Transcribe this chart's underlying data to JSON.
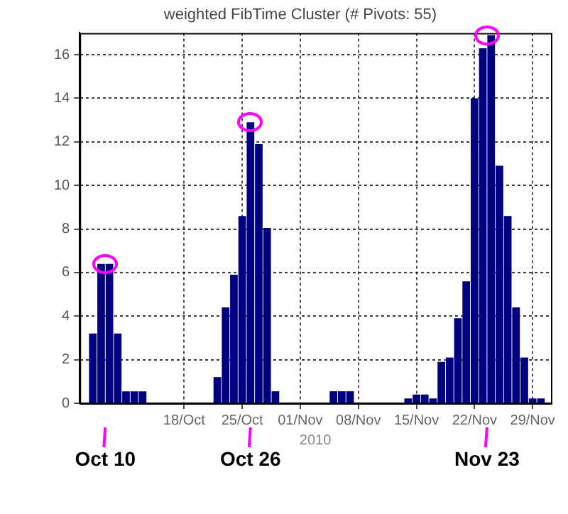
{
  "chart_data": {
    "type": "bar",
    "title": "weighted FibTime Cluster (# Pivots: 55)",
    "xlabel": "2010",
    "x": [
      "2010-10-07",
      "2010-10-08",
      "2010-10-09",
      "2010-10-10",
      "2010-10-11",
      "2010-10-12",
      "2010-10-13",
      "2010-10-22",
      "2010-10-23",
      "2010-10-24",
      "2010-10-25",
      "2010-10-26",
      "2010-10-27",
      "2010-10-28",
      "2010-10-29",
      "2010-11-05",
      "2010-11-06",
      "2010-11-07",
      "2010-11-14",
      "2010-11-15",
      "2010-11-16",
      "2010-11-17",
      "2010-11-18",
      "2010-11-19",
      "2010-11-20",
      "2010-11-21",
      "2010-11-22",
      "2010-11-23",
      "2010-11-24",
      "2010-11-25",
      "2010-11-26",
      "2010-11-27",
      "2010-11-28",
      "2010-11-29",
      "2010-11-30"
    ],
    "values": [
      3.2,
      6.4,
      6.4,
      3.2,
      0.55,
      0.55,
      0.55,
      1.2,
      4.4,
      5.9,
      8.6,
      12.9,
      11.9,
      8.05,
      0.55,
      0.55,
      0.55,
      0.55,
      0.22,
      0.4,
      0.4,
      0.22,
      1.9,
      2.1,
      3.9,
      5.6,
      14.0,
      16.3,
      16.9,
      10.9,
      8.6,
      4.4,
      2.1,
      0.22,
      0.22
    ],
    "color": "#000080",
    "xlim": [
      "2010-10-05T10:00",
      "2010-12-01T05:00"
    ],
    "xticks": [
      {
        "value": "2010-10-18",
        "label": "18/Oct"
      },
      {
        "value": "2010-10-25",
        "label": "25/Oct"
      },
      {
        "value": "2010-11-01",
        "label": "01/Nov"
      },
      {
        "value": "2010-11-08",
        "label": "08/Nov"
      },
      {
        "value": "2010-11-15",
        "label": "15/Nov"
      },
      {
        "value": "2010-11-22",
        "label": "22/Nov"
      },
      {
        "value": "2010-11-29",
        "label": "29/Nov"
      }
    ],
    "ylim": [
      0,
      17
    ],
    "yticks": [
      0,
      2,
      4,
      6,
      8,
      10,
      12,
      14,
      16
    ],
    "grid": true,
    "line_style": "dotted",
    "annotations": [
      {
        "text": "Oct 10",
        "x": "2010-10-08T12:00",
        "y": 0
      },
      {
        "text": "Oct 26",
        "x": "2010-10-26",
        "y": 0
      },
      {
        "text": "Nov 23",
        "x": "2010-11-23T12:00",
        "y": 0
      }
    ]
  }
}
